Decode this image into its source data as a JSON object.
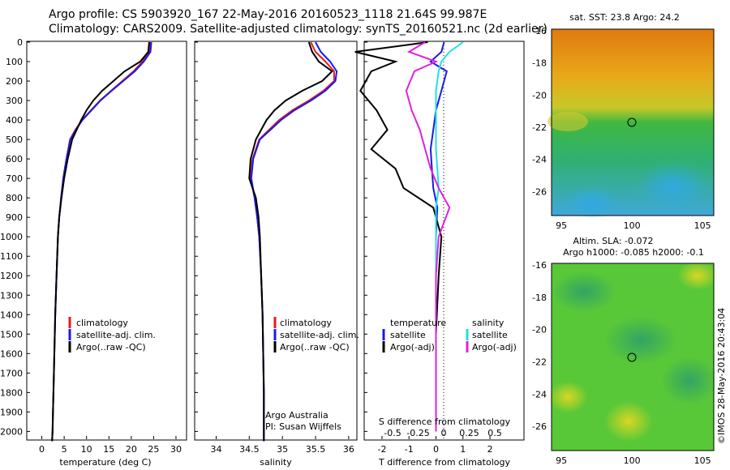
{
  "header": {
    "line1": "Argo profile: CS 5903920_167 22-May-2016 20160523_1118 21.64S 99.987E",
    "line2": "Climatology: CARS2009. Satellite-adjusted climatology: synTS_20160521.nc (2d earlier)"
  },
  "depth_ticks": [
    "0",
    "100",
    "200",
    "300",
    "400",
    "500",
    "600",
    "700",
    "800",
    "900",
    "1000",
    "1100",
    "1200",
    "1300",
    "1400",
    "1500",
    "1600",
    "1700",
    "1800",
    "1900",
    "2000"
  ],
  "colors": {
    "climatology": "#e8191e",
    "satellite": "#1a1ae6",
    "argo": "#000000",
    "salinity_sat": "#20e0e8",
    "salinity_argo": "#e020e0"
  },
  "temperature_panel": {
    "xlabel": "temperature (deg C)",
    "ticks": [
      "0",
      "5",
      "10",
      "15",
      "20",
      "25",
      "30"
    ],
    "legend": [
      "climatology",
      "satellite-adj. clim.",
      "Argo(..raw -QC)"
    ]
  },
  "salinity_panel": {
    "xlabel": "salinity",
    "ticks": [
      "34",
      "34.5",
      "35",
      "35.5",
      "36"
    ],
    "legend": [
      "climatology",
      "satellite-adj. clim.",
      "Argo(..raw -QC)"
    ],
    "credit1": "Argo Australia",
    "credit2": "PI: Susan Wijffels"
  },
  "diff_panel": {
    "xlabel_bottom": "T difference from climatology",
    "xlabel_top": "S difference from climatology",
    "ticks_t": [
      "-2",
      "-1",
      "0",
      "1",
      "2"
    ],
    "ticks_s": [
      "-0.5",
      "-0.25",
      "0",
      "0.25",
      "0.5"
    ],
    "legend_t_title": "temperature",
    "legend_t": [
      "satellite",
      "Argo(-adj)"
    ],
    "legend_s_title": "salinity",
    "legend_s": [
      "satellite",
      "Argo(-adj)"
    ]
  },
  "sst_map": {
    "title": "sat. SST: 23.8 Argo: 24.2",
    "yticks": [
      "-16",
      "-18",
      "-20",
      "-22",
      "-24",
      "-26"
    ],
    "xticks": [
      "95",
      "100",
      "105"
    ]
  },
  "sla_map": {
    "title1": "Altim. SLA: -0.072",
    "title2": "Argo h1000: -0.085 h2000: -0.1",
    "yticks": [
      "-16",
      "-18",
      "-20",
      "-22",
      "-24",
      "-26"
    ],
    "xticks": [
      "95",
      "100",
      "105"
    ]
  },
  "side_credit": "©IMOS 28-May-2016 20:43:04",
  "chart_data": [
    {
      "type": "line",
      "xlabel": "temperature (deg C)",
      "ylabel": "",
      "xlim": [
        -3,
        32
      ],
      "ylim": [
        2050,
        0
      ],
      "series": [
        {
          "name": "climatology",
          "x": [
            24.2,
            24.0,
            22.5,
            20.5,
            18.0,
            15.5,
            13.0,
            11.0,
            9.0,
            7.5,
            6.3,
            5.5,
            4.8,
            4.3,
            3.9,
            3.6,
            3.3,
            3.0,
            2.8,
            2.6,
            2.5,
            2.4,
            2.3
          ],
          "y": [
            0,
            50,
            100,
            150,
            200,
            250,
            300,
            350,
            400,
            450,
            500,
            600,
            700,
            800,
            900,
            1000,
            1200,
            1400,
            1600,
            1800,
            1900,
            2000,
            2050
          ]
        },
        {
          "name": "satellite-adj. clim.",
          "x": [
            24.5,
            24.3,
            22.8,
            20.8,
            18.2,
            15.6,
            13.1,
            11.1,
            9.1,
            7.6,
            6.4,
            5.5,
            4.8,
            4.3,
            3.9,
            3.6,
            3.3,
            3.0,
            2.8,
            2.6,
            2.5,
            2.4,
            2.3
          ],
          "y": [
            0,
            50,
            100,
            150,
            200,
            250,
            300,
            350,
            400,
            450,
            500,
            600,
            700,
            800,
            900,
            1000,
            1200,
            1400,
            1600,
            1800,
            1900,
            2000,
            2050
          ]
        },
        {
          "name": "Argo(..raw -QC)",
          "x": [
            24.0,
            23.8,
            22.0,
            18.5,
            16.0,
            13.5,
            11.5,
            10.0,
            8.8,
            7.8,
            6.8,
            5.8,
            5.0,
            4.4,
            3.9,
            3.6,
            3.3,
            3.0,
            2.8,
            2.6,
            2.5,
            2.4,
            2.3
          ],
          "y": [
            0,
            50,
            100,
            150,
            200,
            250,
            300,
            350,
            400,
            450,
            500,
            600,
            700,
            800,
            900,
            1000,
            1200,
            1400,
            1600,
            1800,
            1900,
            2000,
            2050
          ]
        }
      ]
    },
    {
      "type": "line",
      "xlabel": "salinity",
      "ylabel": "",
      "xlim": [
        33.7,
        36.1
      ],
      "ylim": [
        2050,
        0
      ],
      "series": [
        {
          "name": "climatology",
          "x": [
            35.43,
            35.5,
            35.65,
            35.78,
            35.78,
            35.62,
            35.4,
            35.15,
            34.95,
            34.8,
            34.65,
            34.55,
            34.52,
            34.58,
            34.62,
            34.65,
            34.68,
            34.7,
            34.71,
            34.72,
            34.72
          ],
          "y": [
            0,
            50,
            100,
            150,
            200,
            250,
            300,
            350,
            400,
            450,
            500,
            600,
            700,
            800,
            900,
            1000,
            1200,
            1400,
            1600,
            1800,
            2050
          ]
        },
        {
          "name": "satellite-adj. clim.",
          "x": [
            35.5,
            35.58,
            35.72,
            35.82,
            35.8,
            35.65,
            35.43,
            35.18,
            34.98,
            34.82,
            34.66,
            34.56,
            34.53,
            34.58,
            34.62,
            34.65,
            34.68,
            34.7,
            34.71,
            34.72,
            34.72
          ],
          "y": [
            0,
            50,
            100,
            150,
            200,
            250,
            300,
            350,
            400,
            450,
            500,
            600,
            700,
            800,
            900,
            1000,
            1200,
            1400,
            1600,
            1800,
            2050
          ]
        },
        {
          "name": "Argo(..raw -QC)",
          "x": [
            35.4,
            35.45,
            35.55,
            35.75,
            35.6,
            35.3,
            35.05,
            34.88,
            34.76,
            34.68,
            34.6,
            34.52,
            34.5,
            34.6,
            34.64,
            34.66,
            34.68,
            34.7,
            34.71,
            34.72,
            34.72
          ],
          "y": [
            0,
            50,
            100,
            150,
            200,
            250,
            300,
            350,
            400,
            450,
            500,
            600,
            700,
            800,
            900,
            1000,
            1200,
            1400,
            1600,
            1800,
            2050
          ]
        }
      ]
    },
    {
      "type": "line",
      "xlabel": "T difference from climatology",
      "ylabel": "",
      "xlim": [
        -2.6,
        3.2
      ],
      "ylim": [
        2050,
        0
      ],
      "series": [
        {
          "name": "temperature satellite",
          "x": [
            0.3,
            0.2,
            -0.2,
            0.4,
            0.2,
            0.0,
            -0.1,
            -0.2,
            -0.15,
            -0.1,
            0.05,
            0.0,
            0.0,
            0.0,
            0.0,
            0.0
          ],
          "y": [
            0,
            50,
            100,
            150,
            250,
            350,
            450,
            550,
            650,
            750,
            850,
            1000,
            1200,
            1500,
            1800,
            2000
          ]
        },
        {
          "name": "temperature Argo(-adj)",
          "x": [
            -0.3,
            -3.0,
            -1.5,
            -2.4,
            -2.8,
            -2.2,
            -1.8,
            -2.4,
            -1.5,
            -1.2,
            -0.1,
            0.2,
            0.1,
            0.0,
            0.0,
            0.0
          ],
          "y": [
            0,
            50,
            100,
            150,
            250,
            350,
            450,
            550,
            650,
            750,
            850,
            1000,
            1200,
            1500,
            1800,
            2000
          ]
        },
        {
          "name": "salinity satellite",
          "x": [
            1.0,
            0.5,
            0.2,
            0.1,
            0.0,
            0.0,
            0.0,
            0.0,
            0.05,
            0.1,
            0.0,
            0.0,
            0.0,
            0.0,
            0.0,
            0.0
          ],
          "y": [
            0,
            50,
            100,
            150,
            250,
            350,
            450,
            550,
            650,
            750,
            850,
            1000,
            1200,
            1500,
            1800,
            2000
          ]
        },
        {
          "name": "salinity Argo(-adj)",
          "x": [
            -0.4,
            -1.0,
            0.0,
            -0.8,
            -1.1,
            -0.9,
            -0.6,
            -0.4,
            -0.2,
            0.1,
            0.5,
            0.1,
            0.0,
            0.0,
            0.0,
            0.0
          ],
          "y": [
            0,
            50,
            100,
            150,
            250,
            350,
            450,
            550,
            650,
            750,
            850,
            1000,
            1200,
            1500,
            1800,
            2000
          ]
        }
      ]
    }
  ]
}
